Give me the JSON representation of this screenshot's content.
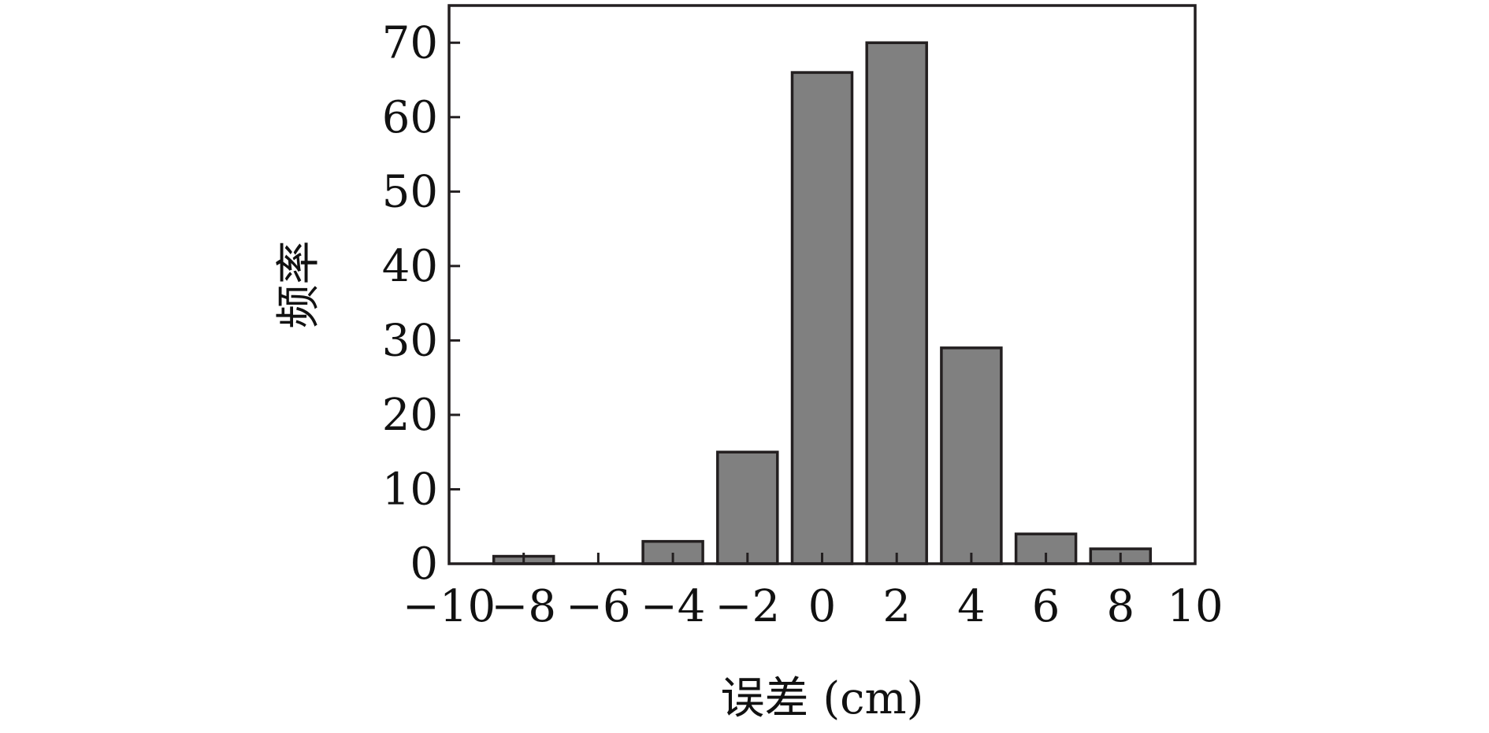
{
  "chart_data": {
    "type": "bar",
    "x": [
      -8,
      -6,
      -4,
      -2,
      0,
      2,
      4,
      6,
      8
    ],
    "values": [
      1,
      0,
      3,
      15,
      66,
      70,
      29,
      4,
      2
    ],
    "xlabel": "误差 (cm)",
    "ylabel": "频率",
    "xlim": [
      -10,
      10
    ],
    "ylim": [
      0,
      75
    ],
    "xticks": [
      -10,
      -8,
      -6,
      -4,
      -2,
      0,
      2,
      4,
      6,
      8,
      10
    ],
    "xtick_labels": [
      "−10",
      "−8",
      "−6",
      "−4",
      "−2",
      "0",
      "2",
      "4",
      "6",
      "8",
      "10"
    ],
    "yticks": [
      0,
      10,
      20,
      30,
      40,
      50,
      60,
      70
    ],
    "ytick_labels": [
      "0",
      "10",
      "20",
      "30",
      "40",
      "50",
      "60",
      "70"
    ],
    "grid": false,
    "bar_color": "#808080",
    "edge_color": "#231f20"
  }
}
